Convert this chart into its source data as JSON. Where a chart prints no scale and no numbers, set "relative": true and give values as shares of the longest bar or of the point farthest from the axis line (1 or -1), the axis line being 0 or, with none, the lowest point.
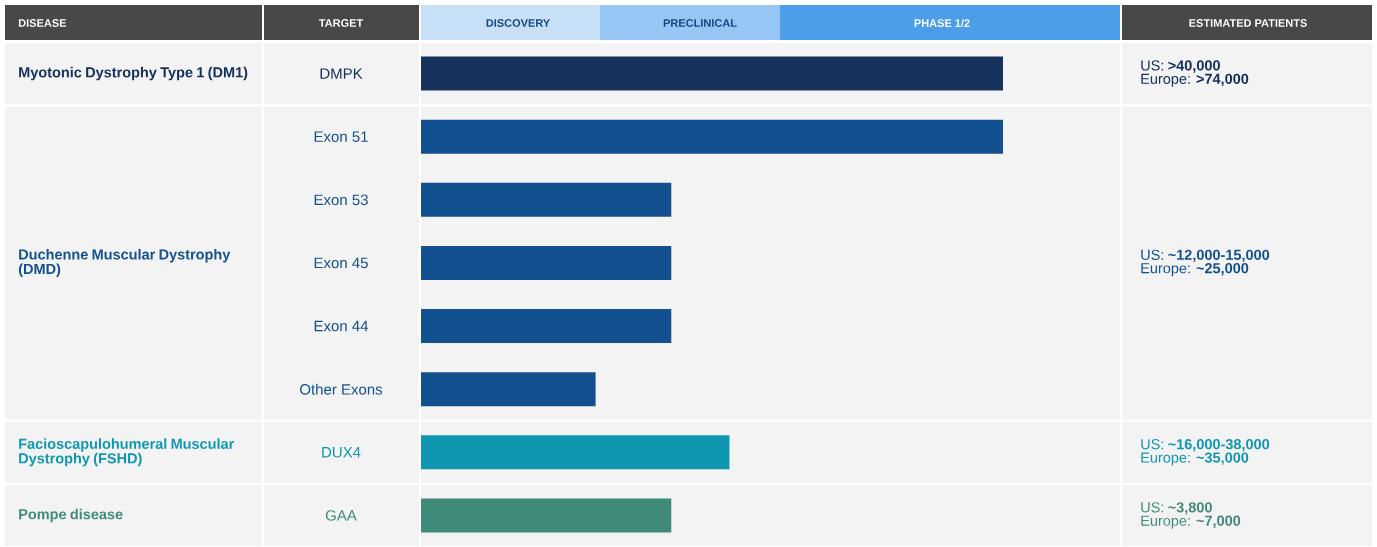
{
  "chart_data": {
    "type": "bar",
    "orientation": "horizontal",
    "relative": true,
    "categories": [
      "DMPK",
      "Exon 51",
      "Exon 53",
      "Exon 45",
      "Exon 44",
      "Other Exons",
      "DUX4",
      "GAA"
    ],
    "values": [
      1,
      1,
      0.43,
      0.43,
      0.43,
      0.3,
      0.53,
      0.43
    ],
    "colors": [
      "#15315c",
      "#13508f",
      "#13508f",
      "#13508f",
      "#13508f",
      "#13508f",
      "#0f97b2",
      "#3f8a78"
    ],
    "annotations": [
      "DISEASE",
      "TARGET",
      "DISCOVERY",
      "PRECLINICAL",
      "PHASE 1/2",
      "ESTIMATED PATIENTS",
      "Myotonic Dystrophy Type 1 (DM1)",
      "Duchenne Muscular Dystrophy (DMD)",
      "Facioscapulohumeral Muscular Dystrophy (FSHD)",
      "Pompe disease",
      "US: **>40,000**",
      "Europe: **>74,000**",
      "US: **~12,000-15,000**",
      "Europe: **~25,000**",
      "US: **~16,000-38,000**",
      "Europe: **~35,000**",
      "US: **~3,800**",
      "Europe: **~7,000**"
    ]
  }
}
